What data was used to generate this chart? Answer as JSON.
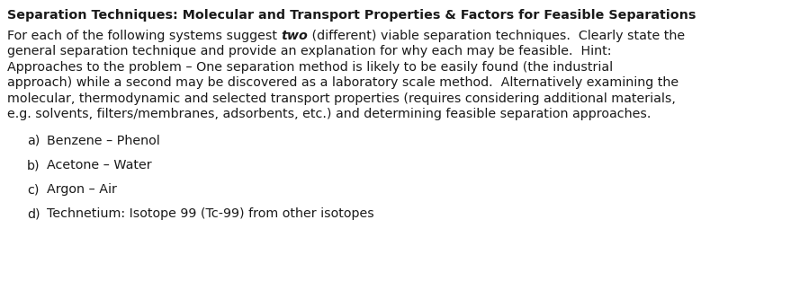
{
  "title": "Separation Techniques: Molecular and Transport Properties & Factors for Feasible Separations",
  "paragraph_pre": "For each of the following systems suggest ",
  "paragraph_bold_italic": "two",
  "paragraph_post": " (different) viable separation techniques.  Clearly state the\ngeneral separation technique and provide an explanation for why each may be feasible.  Hint:\nApproaches to the problem – One separation method is likely to be easily found (the industrial\napproach) while a second may be discovered as a laboratory scale method.  Alternatively examining the\nmolecular, thermodynamic and selected transport properties (requires considering additional materials,\ne.g. solvents, filters/membranes, adsorbents, etc.) and determining feasible separation approaches.",
  "items": [
    [
      "a)",
      "Benzene – Phenol"
    ],
    [
      "b)",
      "Acetone – Water"
    ],
    [
      "c)",
      "Argon – Air"
    ],
    [
      "d)",
      "Technetium: Isotope 99 (Tc-99) from other isotopes"
    ]
  ],
  "bg_color": "#ffffff",
  "text_color": "#1a1a1a",
  "font_size": 10.3,
  "fig_width": 8.99,
  "fig_height": 3.33,
  "dpi": 100
}
